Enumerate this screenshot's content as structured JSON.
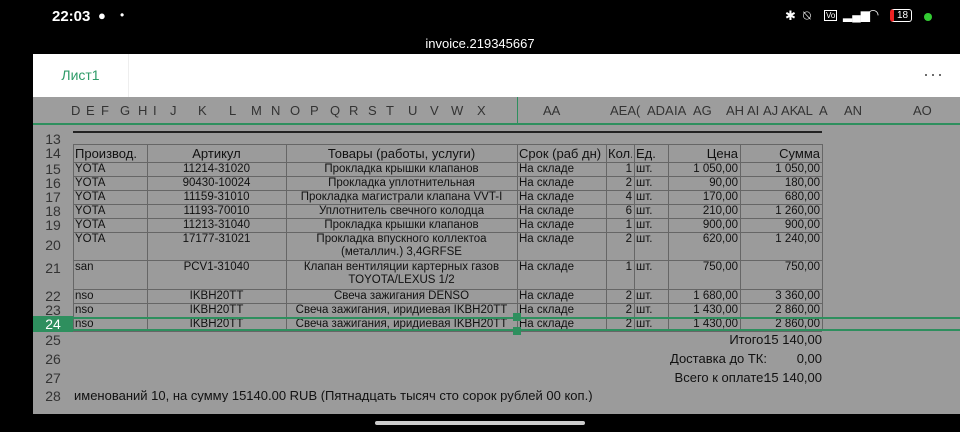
{
  "status": {
    "time": "22:03",
    "battery": "18",
    "icons": [
      "whatsapp-icon",
      "dot-icon",
      "bluetooth-icon",
      "mute-icon",
      "volte-icon",
      "signal-icon",
      "wifi-icon",
      "battery-icon"
    ]
  },
  "window": {
    "title": "invoice.219345667"
  },
  "tabs": [
    {
      "label": "Лист1"
    }
  ],
  "more_label": "···",
  "columns": [
    "D",
    "E",
    "F",
    "G",
    "H",
    "I",
    "J",
    "K",
    "L",
    "M",
    "N",
    "O",
    "P",
    "Q",
    "R",
    "S",
    "T",
    "U",
    "V",
    "W",
    "X",
    "AA",
    "AEA(",
    "ADA",
    "IA",
    "AG",
    "AH",
    "AI",
    "AJ",
    "AK",
    "AL",
    "A",
    "AN",
    "AO"
  ],
  "row_numbers": [
    "13",
    "14",
    "15",
    "16",
    "17",
    "18",
    "19",
    "20",
    "21",
    "22",
    "23",
    "24",
    "25",
    "26",
    "27",
    "28"
  ],
  "table": {
    "headers": [
      "Производ.",
      "Артикул",
      "Товары (работы, услуги)",
      "Срок (раб дн)",
      "Кол.",
      "Ед.",
      "Цена",
      "Сумма"
    ],
    "rows": [
      [
        "YOTA",
        "11214-31020",
        "Прокладка крышки клапанов",
        "На складе",
        "1",
        "шт.",
        "1 050,00",
        "1 050,00"
      ],
      [
        "YOTA",
        "90430-10024",
        "Прокладка уплотнительная",
        "На складе",
        "2",
        "шт.",
        "90,00",
        "180,00"
      ],
      [
        "YOTA",
        "11159-31010",
        "Прокладка магистрали клапана VVT-I",
        "На складе",
        "4",
        "шт.",
        "170,00",
        "680,00"
      ],
      [
        "YOTA",
        "11193-70010",
        "Уплотнитель свечного колодца",
        "На складе",
        "6",
        "шт.",
        "210,00",
        "1 260,00"
      ],
      [
        "YOTA",
        "11213-31040",
        "Прокладка крышки клапанов",
        "На складе",
        "1",
        "шт.",
        "900,00",
        "900,00"
      ],
      [
        "YOTA",
        "17177-31021",
        "Прокладка впускного коллектоа\n(металлич.) 3,4GRFSE",
        "На складе",
        "2",
        "шт.",
        "620,00",
        "1 240,00"
      ],
      [
        "san",
        "PCV1-31040",
        "Клапан вентиляции картерных газов\nTOYOTA/LEXUS 1/2",
        "На складе",
        "1",
        "шт.",
        "750,00",
        "750,00"
      ],
      [
        "nso",
        "IKBH20TT",
        "Свеча зажигания DENSO",
        "На складе",
        "2",
        "шт.",
        "1 680,00",
        "3 360,00"
      ],
      [
        "nso",
        "IKBH20TT",
        "Свеча зажигания, иридиевая IKBH20TT",
        "На складе",
        "2",
        "шт.",
        "1 430,00",
        "2 860,00"
      ],
      [
        "nso",
        "IKBH20TT",
        "Свеча зажигания, иридиевая IKBH20TT",
        "На складе",
        "2",
        "шт.",
        "1 430,00",
        "2 860,00"
      ]
    ]
  },
  "totals": [
    {
      "label": "Итого:",
      "value": "15 140,00"
    },
    {
      "label": "Доставка до ТК:",
      "value": "0,00"
    },
    {
      "label": "Всего к оплате:",
      "value": "15 140,00"
    }
  ],
  "summary": "именований 10, на сумму 15140.00 RUB (Пятнадцать тысяч сто сорок рублей 00 коп.)",
  "selected_row": "24",
  "accent": "#2e8f5e"
}
